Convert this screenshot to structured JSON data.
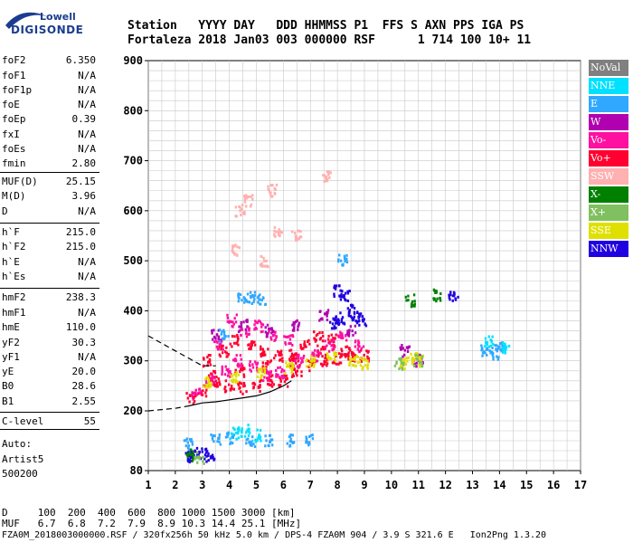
{
  "logo": {
    "line1": "Lowell",
    "line2": "DIGISONDE"
  },
  "header": {
    "labels": "Station   YYYY DAY   DDD HHMMSS P1  FFS S AXN PPS IGA PS",
    "values": "Fortaleza 2018 Jan03 003 000000 RSF      1 714 100 10+ 11"
  },
  "params": [
    {
      "k": "foF2",
      "v": "6.350"
    },
    {
      "k": "foF1",
      "v": "N/A"
    },
    {
      "k": "foF1p",
      "v": "N/A"
    },
    {
      "k": "foE",
      "v": "N/A"
    },
    {
      "k": "foEp",
      "v": "0.39"
    },
    {
      "k": "fxI",
      "v": "N/A"
    },
    {
      "k": "foEs",
      "v": "N/A"
    },
    {
      "k": "fmin",
      "v": "2.80"
    },
    {
      "k": "MUF(D)",
      "v": "25.15"
    },
    {
      "k": "M(D)",
      "v": "3.96"
    },
    {
      "k": "D",
      "v": "N/A"
    },
    {
      "k": "h`F",
      "v": "215.0"
    },
    {
      "k": "h`F2",
      "v": "215.0"
    },
    {
      "k": "h`E",
      "v": "N/A"
    },
    {
      "k": "h`Es",
      "v": "N/A"
    },
    {
      "k": "hmF2",
      "v": "238.3"
    },
    {
      "k": "hmF1",
      "v": "N/A"
    },
    {
      "k": "hmE",
      "v": "110.0"
    },
    {
      "k": "yF2",
      "v": "30.3"
    },
    {
      "k": "yF1",
      "v": "N/A"
    },
    {
      "k": "yE",
      "v": "20.0"
    },
    {
      "k": "B0",
      "v": "28.6"
    },
    {
      "k": "B1",
      "v": "2.55"
    },
    {
      "k": "C-level",
      "v": "55"
    }
  ],
  "auto": {
    "l1": "Auto:",
    "l2": "Artist5",
    "l3": "500200"
  },
  "footer": {
    "d_row": "D     100  200  400  600  800 1000 1500 3000 [km]",
    "muf_row": "MUF   6.7  6.8  7.2  7.9  8.9 10.3 14.4 25.1 [MHz]",
    "file_row": "FZA0M_2018003000000.RSF / 320fx256h 50 kHz 5.0 km / DPS-4 FZA0M 904 / 3.9 S 321.6 E   Ion2Png 1.3.20"
  },
  "legend": [
    {
      "name": "NoVal",
      "color": "#808080"
    },
    {
      "name": "NNE",
      "color": "#00e0ff"
    },
    {
      "name": "E",
      "color": "#30a8ff"
    },
    {
      "name": "W",
      "color": "#b000b0"
    },
    {
      "name": "Vo-",
      "color": "#ff10a0"
    },
    {
      "name": "Vo+",
      "color": "#ff0030"
    },
    {
      "name": "SSW",
      "color": "#ffb0b0"
    },
    {
      "name": "X-",
      "color": "#008000"
    },
    {
      "name": "X+",
      "color": "#80c060"
    },
    {
      "name": "SSE",
      "color": "#e0e000"
    },
    {
      "name": "NNW",
      "color": "#2000e0"
    }
  ],
  "chart_data": {
    "type": "scatter",
    "xlim": [
      1,
      17
    ],
    "ylim": [
      80,
      900
    ],
    "x_ticks": [
      1,
      2,
      3,
      4,
      5,
      6,
      7,
      8,
      9,
      10,
      11,
      12,
      13,
      14,
      15,
      16,
      17
    ],
    "y_ticks": [
      80,
      200,
      300,
      400,
      500,
      600,
      700,
      800,
      900
    ],
    "grid": true,
    "series": [
      {
        "name": "Vo+",
        "color": "#ff0030",
        "points": [
          [
            2.6,
            225
          ],
          [
            3.0,
            240
          ],
          [
            3.5,
            255
          ],
          [
            4.0,
            250
          ],
          [
            4.5,
            245
          ],
          [
            5.0,
            250
          ],
          [
            5.5,
            260
          ],
          [
            6.0,
            260
          ],
          [
            6.5,
            280
          ],
          [
            7.0,
            290
          ],
          [
            7.5,
            300
          ],
          [
            8.0,
            305
          ],
          [
            8.5,
            310
          ],
          [
            9.0,
            310
          ],
          [
            3.2,
            300
          ],
          [
            3.8,
            320
          ],
          [
            4.2,
            340
          ],
          [
            4.8,
            330
          ],
          [
            5.3,
            320
          ],
          [
            5.8,
            310
          ],
          [
            6.3,
            300
          ],
          [
            6.8,
            330
          ],
          [
            7.3,
            350
          ],
          [
            7.8,
            340
          ],
          [
            8.3,
            320
          ],
          [
            3.4,
            270
          ],
          [
            4.4,
            280
          ],
          [
            5.4,
            290
          ],
          [
            6.4,
            310
          ],
          [
            7.4,
            320
          ]
        ]
      },
      {
        "name": "Vo-",
        "color": "#ff10a0",
        "points": [
          [
            2.8,
            235
          ],
          [
            3.3,
            260
          ],
          [
            3.9,
            280
          ],
          [
            4.3,
            300
          ],
          [
            4.9,
            290
          ],
          [
            5.4,
            270
          ],
          [
            5.9,
            275
          ],
          [
            6.6,
            300
          ],
          [
            7.2,
            310
          ],
          [
            7.7,
            330
          ],
          [
            8.2,
            350
          ],
          [
            8.8,
            330
          ],
          [
            3.6,
            330
          ],
          [
            4.6,
            360
          ],
          [
            5.6,
            350
          ],
          [
            6.2,
            340
          ],
          [
            4.1,
            380
          ],
          [
            5.1,
            370
          ]
        ]
      },
      {
        "name": "W",
        "color": "#b000b0",
        "points": [
          [
            3.5,
            350
          ],
          [
            4.5,
            370
          ],
          [
            5.5,
            360
          ],
          [
            6.5,
            370
          ],
          [
            7.5,
            390
          ],
          [
            8.5,
            360
          ],
          [
            10.5,
            320
          ],
          [
            11.0,
            300
          ]
        ]
      },
      {
        "name": "SSE",
        "color": "#e0e000",
        "points": [
          [
            3.2,
            255
          ],
          [
            4.2,
            265
          ],
          [
            5.2,
            275
          ],
          [
            6.2,
            285
          ],
          [
            7.0,
            300
          ],
          [
            7.8,
            305
          ],
          [
            8.6,
            300
          ],
          [
            9.0,
            295
          ],
          [
            10.5,
            295
          ],
          [
            10.8,
            305
          ],
          [
            11.0,
            300
          ]
        ]
      },
      {
        "name": "NNW",
        "color": "#2000e0",
        "points": [
          [
            8.0,
            440
          ],
          [
            8.3,
            430
          ],
          [
            8.5,
            400
          ],
          [
            8.7,
            390
          ],
          [
            7.9,
            375
          ],
          [
            8.1,
            385
          ],
          [
            8.9,
            380
          ],
          [
            2.5,
            108
          ],
          [
            3.0,
            112
          ],
          [
            2.7,
            115
          ],
          [
            3.3,
            110
          ],
          [
            12.3,
            430
          ]
        ]
      },
      {
        "name": "E",
        "color": "#30a8ff",
        "points": [
          [
            3.8,
            350
          ],
          [
            4.5,
            425
          ],
          [
            5.2,
            420
          ],
          [
            4.8,
            425
          ],
          [
            8.2,
            500
          ],
          [
            2.5,
            132
          ],
          [
            3.5,
            142
          ],
          [
            4.0,
            145
          ],
          [
            4.8,
            140
          ],
          [
            5.5,
            140
          ],
          [
            6.3,
            140
          ],
          [
            7.0,
            142
          ],
          [
            13.5,
            320
          ],
          [
            14.0,
            330
          ],
          [
            13.8,
            315
          ]
        ]
      },
      {
        "name": "NNE",
        "color": "#00e0ff",
        "points": [
          [
            4.2,
            155
          ],
          [
            4.6,
            160
          ],
          [
            5.0,
            150
          ],
          [
            13.6,
            340
          ],
          [
            14.2,
            325
          ]
        ]
      },
      {
        "name": "X-",
        "color": "#008000",
        "points": [
          [
            10.7,
            420
          ],
          [
            11.7,
            430
          ],
          [
            2.6,
            110
          ]
        ]
      },
      {
        "name": "SSW",
        "color": "#ffb0b0",
        "points": [
          [
            4.4,
            600
          ],
          [
            4.7,
            620
          ],
          [
            5.6,
            640
          ],
          [
            5.8,
            560
          ],
          [
            6.5,
            550
          ],
          [
            7.6,
            670
          ],
          [
            4.2,
            520
          ],
          [
            5.3,
            500
          ]
        ]
      },
      {
        "name": "X+",
        "color": "#80c060",
        "points": [
          [
            11.0,
            300
          ],
          [
            10.3,
            295
          ],
          [
            2.9,
            105
          ]
        ]
      }
    ]
  }
}
